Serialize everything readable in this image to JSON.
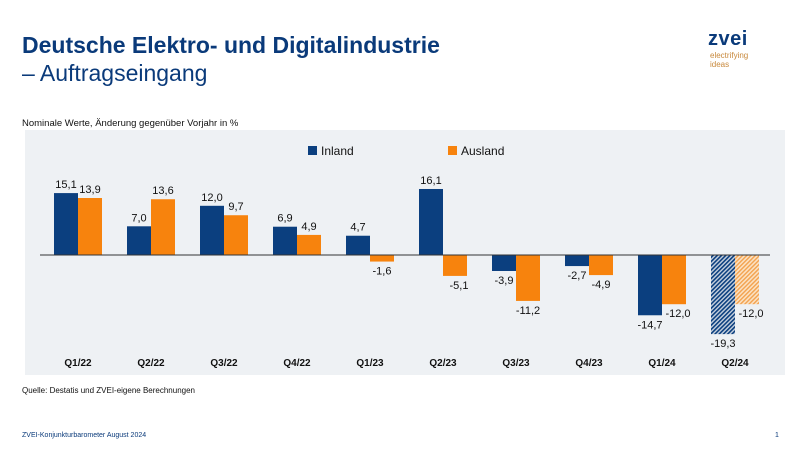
{
  "title": "Deutsche Elektro- und Digitalindustrie",
  "subtitle_line": "– Auftragseingang",
  "logo": {
    "word": "zvei",
    "tagline1": "electrifying",
    "tagline2": "ideas"
  },
  "note": "Nominale Werte, Änderung gegenüber Vorjahr in %",
  "source": "Quelle: Destatis und ZVEI-eigene Berechnungen",
  "footer": "ZVEI-Konjunkturbarometer August 2024",
  "page_number": "1",
  "chart_data": {
    "type": "bar",
    "categories": [
      "Q1/22",
      "Q2/22",
      "Q3/22",
      "Q4/22",
      "Q1/23",
      "Q2/23",
      "Q3/23",
      "Q4/23",
      "Q1/24",
      "Q2/24"
    ],
    "series": [
      {
        "name": "Inland",
        "color": "#0b3f7f",
        "values": [
          15.1,
          7.0,
          12.0,
          6.9,
          4.7,
          16.1,
          -3.9,
          -2.7,
          -14.7,
          -19.3
        ],
        "labels": [
          "15,1",
          "7,0",
          "12,0",
          "6,9",
          "4,7",
          "16,1",
          "-3,9",
          "-2,7",
          "-14,7",
          "-19,3"
        ]
      },
      {
        "name": "Ausland",
        "color": "#f7830d",
        "values": [
          13.9,
          13.6,
          9.7,
          4.9,
          -1.6,
          -5.1,
          -11.2,
          -4.9,
          -12.0,
          -12.0
        ],
        "labels": [
          "13,9",
          "13,6",
          "9,7",
          "4,9",
          "-1,6",
          "-5,1",
          "-11,2",
          "-4,9",
          "-12,0",
          "-12,0"
        ]
      }
    ],
    "hatched_categories": [
      "Q2/24"
    ],
    "legend_position": "top-center",
    "grid": false,
    "background": "#eef1f4"
  }
}
